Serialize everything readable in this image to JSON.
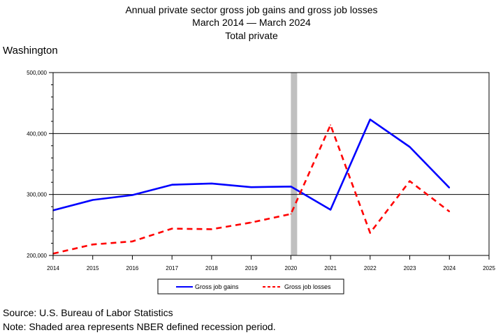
{
  "header": {
    "title_line1": "Annual private sector gross job gains and gross job losses",
    "title_line2": "March 2014 — March 2024",
    "title_line3": "Total private",
    "region": "Washington"
  },
  "footer": {
    "source": "Source: U.S. Bureau of Labor Statistics",
    "note": "Note: Shaded area represents NBER defined recession period."
  },
  "chart_data": {
    "type": "line",
    "x": [
      2014,
      2015,
      2016,
      2017,
      2018,
      2019,
      2020,
      2021,
      2022,
      2023,
      2024
    ],
    "xlim": [
      2014,
      2025
    ],
    "xticks": [
      "2014",
      "2015",
      "2016",
      "2017",
      "2018",
      "2019",
      "2020",
      "2021",
      "2022",
      "2023",
      "2024",
      "2025"
    ],
    "ylim": [
      200000,
      500000
    ],
    "yticks": [
      {
        "value": 200000,
        "label": "200,000"
      },
      {
        "value": 300000,
        "label": "300,000"
      },
      {
        "value": 400000,
        "label": "400,000"
      },
      {
        "value": 500000,
        "label": "500,000"
      }
    ],
    "grid_y": [
      300000,
      400000
    ],
    "recession": {
      "start": 2020.0,
      "end": 2020.15,
      "color": "#c0c0c0"
    },
    "series": [
      {
        "name": "Gross job gains",
        "color": "#0000ff",
        "style": "solid",
        "values": [
          274000,
          291000,
          299000,
          316000,
          318000,
          312000,
          313000,
          275000,
          423000,
          378000,
          311000
        ]
      },
      {
        "name": "Gross job losses",
        "color": "#ff0000",
        "style": "dashed",
        "values": [
          203000,
          218000,
          223000,
          244000,
          243000,
          254000,
          268000,
          414000,
          237000,
          322000,
          272000
        ]
      }
    ],
    "legend_position": "bottom-center"
  }
}
